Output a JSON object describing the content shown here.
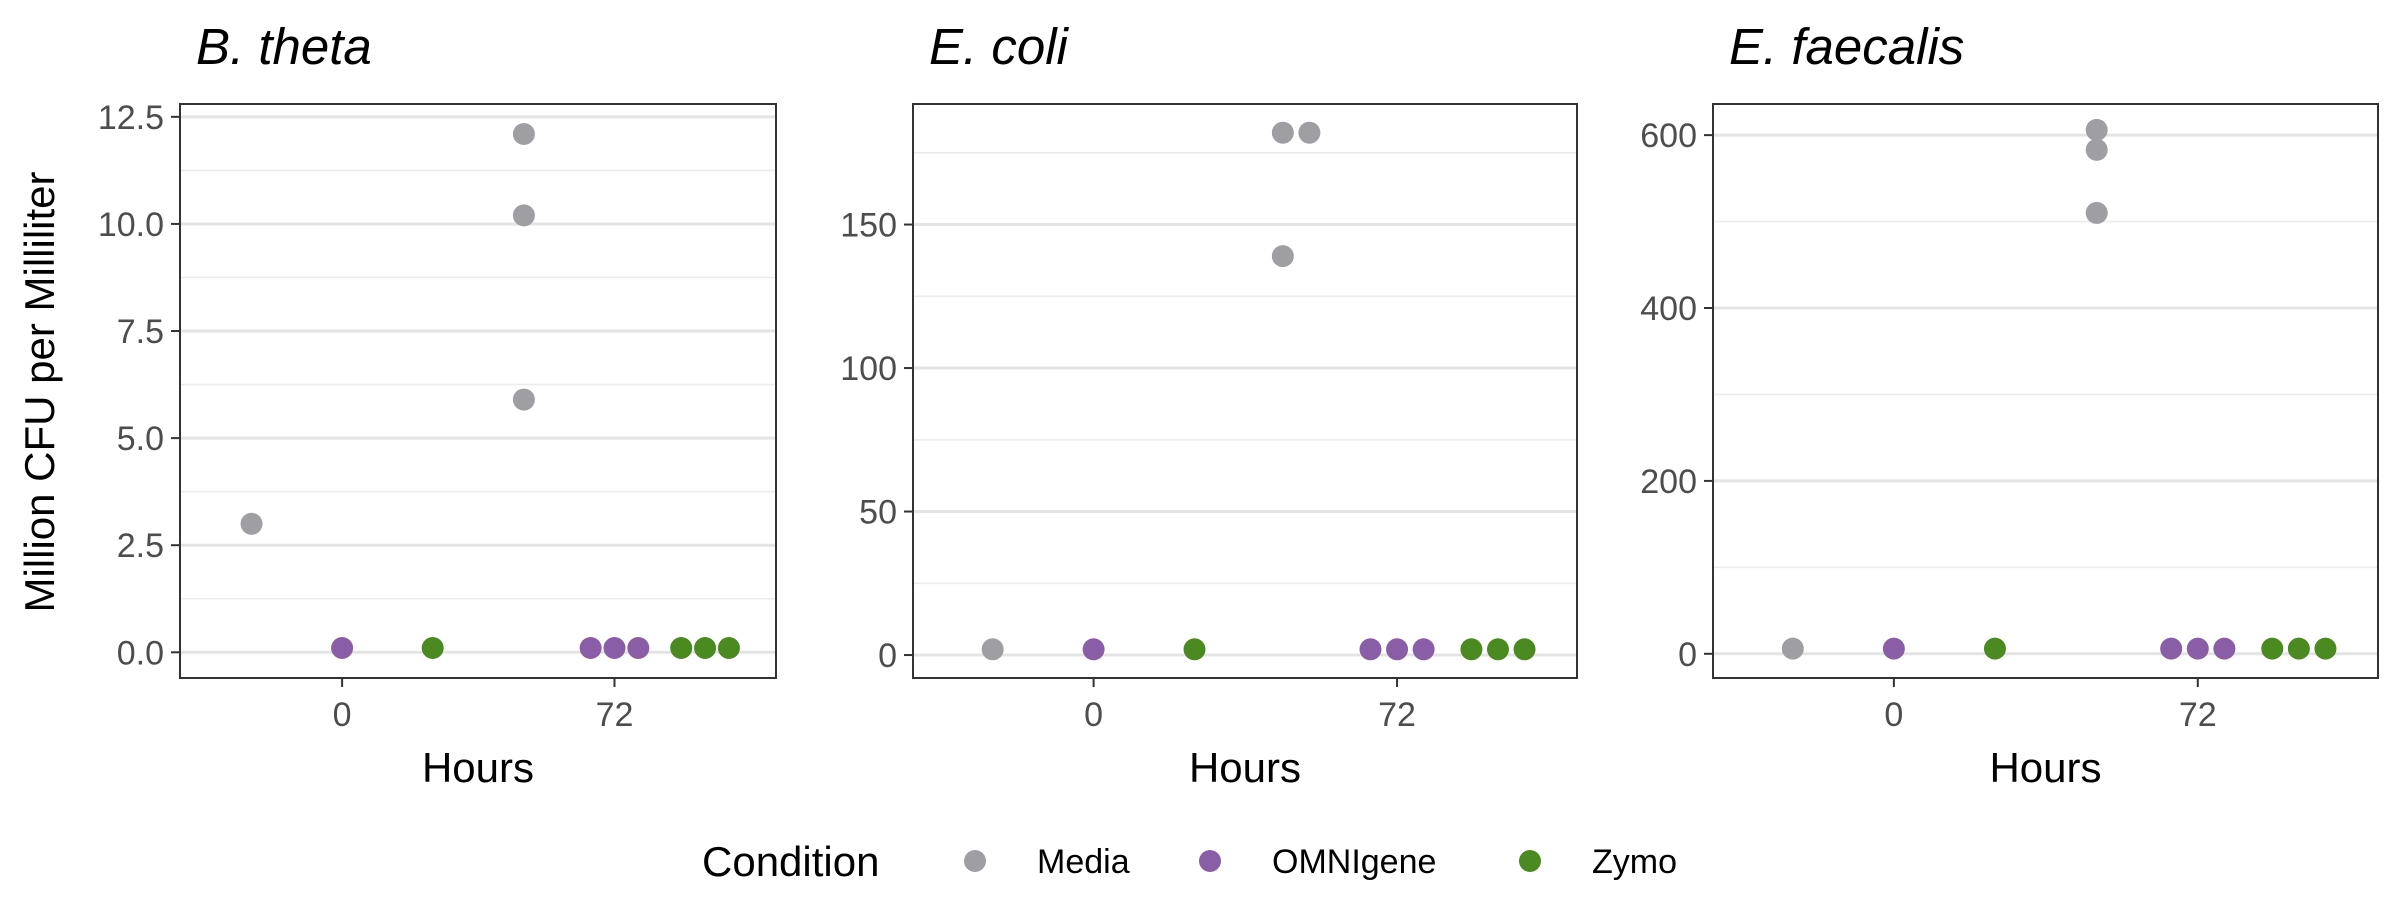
{
  "chart_data": {
    "type": "scatter",
    "ylabel": "Million CFU per Milliliter",
    "xlabel": "Hours",
    "legend": {
      "title": "Condition",
      "placement": "bottom",
      "entries": [
        {
          "name": "Media",
          "color": "#9e9ea3"
        },
        {
          "name": "OMNIgene",
          "color": "#8a5ea7"
        },
        {
          "name": "Zymo",
          "color": "#4a8a21"
        }
      ]
    },
    "grid": true,
    "x_axis": {
      "type": "categorical-dodged",
      "tick_labels": [
        "0",
        "72"
      ],
      "groups": [
        "0",
        "72"
      ],
      "dodge_order": [
        "Media",
        "OMNIgene",
        "Zymo"
      ]
    },
    "panels": [
      {
        "title": "B. theta",
        "ylim": [
          -0.6,
          12.8
        ],
        "yticks": [
          0.0,
          2.5,
          5.0,
          7.5,
          10.0,
          12.5
        ],
        "ytick_labels": [
          "0.0",
          "2.5",
          "5.0",
          "7.5",
          "10.0",
          "12.5"
        ],
        "points": [
          {
            "hours": "0",
            "condition": "Media",
            "rep": 0,
            "y": 3.0
          },
          {
            "hours": "0",
            "condition": "OMNIgene",
            "rep": 0,
            "y": 0.1
          },
          {
            "hours": "0",
            "condition": "Zymo",
            "rep": 0,
            "y": 0.1
          },
          {
            "hours": "72",
            "condition": "Media",
            "rep": 0,
            "y": 5.9
          },
          {
            "hours": "72",
            "condition": "Media",
            "rep": 0,
            "y": 10.2
          },
          {
            "hours": "72",
            "condition": "Media",
            "rep": 0,
            "y": 12.1
          },
          {
            "hours": "72",
            "condition": "OMNIgene",
            "rep": 0,
            "y": 0.1
          },
          {
            "hours": "72",
            "condition": "OMNIgene",
            "rep": 1,
            "y": 0.1
          },
          {
            "hours": "72",
            "condition": "OMNIgene",
            "rep": 2,
            "y": 0.1
          },
          {
            "hours": "72",
            "condition": "Zymo",
            "rep": 0,
            "y": 0.1
          },
          {
            "hours": "72",
            "condition": "Zymo",
            "rep": 1,
            "y": 0.1
          },
          {
            "hours": "72",
            "condition": "Zymo",
            "rep": 2,
            "y": 0.1
          }
        ]
      },
      {
        "title": "E. coli",
        "ylim": [
          -8,
          192
        ],
        "yticks": [
          0,
          50,
          100,
          150
        ],
        "ytick_labels": [
          "0",
          "50",
          "100",
          "150"
        ],
        "points": [
          {
            "hours": "0",
            "condition": "Media",
            "rep": 0,
            "y": 2
          },
          {
            "hours": "0",
            "condition": "OMNIgene",
            "rep": 0,
            "y": 2
          },
          {
            "hours": "0",
            "condition": "Zymo",
            "rep": 0,
            "y": 2
          },
          {
            "hours": "72",
            "condition": "Media",
            "rep": 0,
            "y": 139
          },
          {
            "hours": "72",
            "condition": "Media",
            "rep": 0,
            "y": 182
          },
          {
            "hours": "72",
            "condition": "Media",
            "rep": 1,
            "y": 182
          },
          {
            "hours": "72",
            "condition": "OMNIgene",
            "rep": 0,
            "y": 2
          },
          {
            "hours": "72",
            "condition": "OMNIgene",
            "rep": 1,
            "y": 2
          },
          {
            "hours": "72",
            "condition": "OMNIgene",
            "rep": 2,
            "y": 2
          },
          {
            "hours": "72",
            "condition": "Zymo",
            "rep": 0,
            "y": 2
          },
          {
            "hours": "72",
            "condition": "Zymo",
            "rep": 1,
            "y": 2
          },
          {
            "hours": "72",
            "condition": "Zymo",
            "rep": 2,
            "y": 2
          }
        ]
      },
      {
        "title": "E. faecalis",
        "ylim": [
          -28,
          636
        ],
        "yticks": [
          0,
          200,
          400,
          600
        ],
        "ytick_labels": [
          "0",
          "200",
          "400",
          "600"
        ],
        "points": [
          {
            "hours": "0",
            "condition": "Media",
            "rep": 0,
            "y": 6
          },
          {
            "hours": "0",
            "condition": "OMNIgene",
            "rep": 0,
            "y": 6
          },
          {
            "hours": "0",
            "condition": "Zymo",
            "rep": 0,
            "y": 6
          },
          {
            "hours": "72",
            "condition": "Media",
            "rep": 0,
            "y": 510
          },
          {
            "hours": "72",
            "condition": "Media",
            "rep": 0,
            "y": 583
          },
          {
            "hours": "72",
            "condition": "Media",
            "rep": 0,
            "y": 606
          },
          {
            "hours": "72",
            "condition": "OMNIgene",
            "rep": 0,
            "y": 6
          },
          {
            "hours": "72",
            "condition": "OMNIgene",
            "rep": 1,
            "y": 6
          },
          {
            "hours": "72",
            "condition": "OMNIgene",
            "rep": 2,
            "y": 6
          },
          {
            "hours": "72",
            "condition": "Zymo",
            "rep": 0,
            "y": 6
          },
          {
            "hours": "72",
            "condition": "Zymo",
            "rep": 1,
            "y": 6
          },
          {
            "hours": "72",
            "condition": "Zymo",
            "rep": 2,
            "y": 6
          }
        ]
      }
    ]
  }
}
